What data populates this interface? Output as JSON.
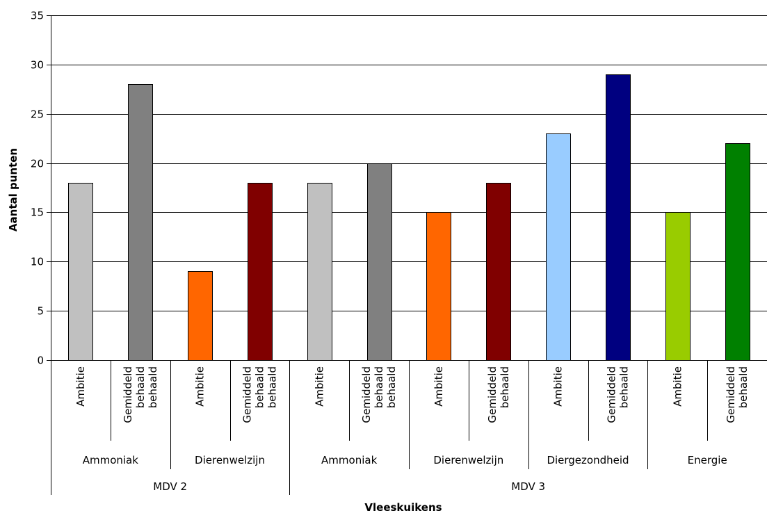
{
  "chart_data": {
    "type": "bar",
    "ylabel": "Aantal punten",
    "xlabel": "Vleeskuikens",
    "ylim": [
      0,
      35
    ],
    "yticks": [
      0,
      5,
      10,
      15,
      20,
      25,
      30,
      35
    ],
    "grid": true,
    "legend": "none",
    "bars": [
      {
        "label": [
          "Ambitie"
        ],
        "value": 18,
        "color": "#c0c0c0"
      },
      {
        "label": [
          "Gemiddeld",
          "behaald",
          "behaald"
        ],
        "value": 28,
        "color": "#808080"
      },
      {
        "label": [
          "Ambitie"
        ],
        "value": 9,
        "color": "#ff6600"
      },
      {
        "label": [
          "Gemiddeld",
          "behaald",
          "behaald"
        ],
        "value": 18,
        "color": "#800000"
      },
      {
        "label": [
          "Ambitie"
        ],
        "value": 18,
        "color": "#c0c0c0"
      },
      {
        "label": [
          "Gemiddeld",
          "behaald",
          "behaald"
        ],
        "value": 20,
        "color": "#808080"
      },
      {
        "label": [
          "Ambitie"
        ],
        "value": 15,
        "color": "#ff6600"
      },
      {
        "label": [
          "Gemiddeld",
          "behaald"
        ],
        "value": 18,
        "color": "#800000"
      },
      {
        "label": [
          "Ambitie"
        ],
        "value": 23,
        "color": "#99ccff"
      },
      {
        "label": [
          "Gemiddeld",
          "behaald"
        ],
        "value": 29,
        "color": "#000080"
      },
      {
        "label": [
          "Ambitie"
        ],
        "value": 15,
        "color": "#99cc00"
      },
      {
        "label": [
          "Gemiddeld",
          "behaald"
        ],
        "value": 22,
        "color": "#008000"
      }
    ],
    "groups": [
      {
        "label": "Ammoniak",
        "start": 0,
        "end": 2
      },
      {
        "label": "Dierenwelzijn",
        "start": 2,
        "end": 4
      },
      {
        "label": "Ammoniak",
        "start": 4,
        "end": 6
      },
      {
        "label": "Dierenwelzijn",
        "start": 6,
        "end": 8
      },
      {
        "label": "Diergezondheid",
        "start": 8,
        "end": 10
      },
      {
        "label": "Energie",
        "start": 10,
        "end": 12
      }
    ],
    "supergroups": [
      {
        "label": "MDV 2",
        "start": 0,
        "end": 4
      },
      {
        "label": "MDV 3",
        "start": 4,
        "end": 12
      }
    ]
  }
}
